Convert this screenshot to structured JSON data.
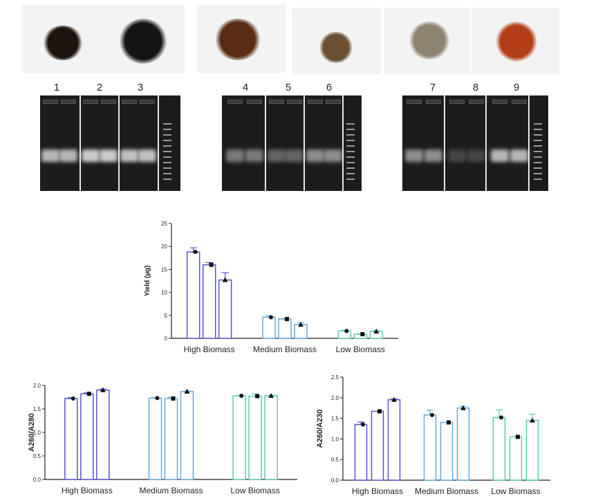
{
  "samples": {
    "lane_numbers": [
      "1",
      "2",
      "3",
      "4",
      "5",
      "6",
      "7",
      "8",
      "9"
    ],
    "pile_colors": [
      "#1e130d",
      "#151515",
      "#5a2b16",
      "#6b5034",
      "#8f8470",
      "#b23d17"
    ]
  },
  "chart_data": [
    {
      "type": "bar",
      "ylabel": "Yield (µg)",
      "categories": [
        "High Biomass",
        "Medium Biomass",
        "Low Biomass"
      ],
      "ylim": [
        0,
        25
      ],
      "yticks": [
        0,
        5,
        10,
        15,
        20,
        25
      ],
      "colors": [
        "#5555cc",
        "#66a8d8",
        "#55ccb0"
      ],
      "series": [
        {
          "values": [
            18.8,
            4.6,
            1.6
          ],
          "errors": [
            0.9,
            0.3,
            0.15
          ]
        },
        {
          "values": [
            16.0,
            4.2,
            0.9
          ],
          "errors": [
            0.5,
            0.1,
            0.1
          ]
        },
        {
          "values": [
            12.7,
            3.0,
            1.5
          ],
          "errors": [
            1.6,
            0.4,
            0.2
          ]
        }
      ],
      "grid": false
    },
    {
      "type": "bar",
      "ylabel": "A260/A280",
      "categories": [
        "High Biomass",
        "Medium Biomass",
        "Low Biomass"
      ],
      "ylim": [
        0,
        2.0
      ],
      "yticks": [
        "0.0",
        "0.5",
        "1.0",
        "1.5",
        "2.0"
      ],
      "colors": [
        "#5555cc",
        "#66a8d8",
        "#55ccb0"
      ],
      "series": [
        {
          "values": [
            1.72,
            1.73,
            1.78
          ],
          "errors": [
            0.02,
            0.01,
            0.01
          ]
        },
        {
          "values": [
            1.82,
            1.72,
            1.77
          ],
          "errors": [
            0.02,
            0.03,
            0.05
          ]
        },
        {
          "values": [
            1.9,
            1.87,
            1.78
          ],
          "errors": [
            0.02,
            0.01,
            0.01
          ]
        }
      ],
      "grid": false
    },
    {
      "type": "bar",
      "ylabel": "A260/A230",
      "categories": [
        "High Biomass",
        "Medium Biomass",
        "Low Biomass"
      ],
      "ylim": [
        0,
        2.5
      ],
      "yticks": [
        "0.0",
        "0.5",
        "1.0",
        "1.5",
        "2.0",
        "2.5"
      ],
      "colors": [
        "#5555cc",
        "#66a8d8",
        "#55ccb0"
      ],
      "series": [
        {
          "values": [
            1.35,
            1.58,
            1.52
          ],
          "errors": [
            0.06,
            0.12,
            0.18
          ]
        },
        {
          "values": [
            1.67,
            1.4,
            1.05
          ],
          "errors": [
            0.0,
            0.0,
            0.0
          ]
        },
        {
          "values": [
            1.95,
            1.75,
            1.45
          ],
          "errors": [
            0.02,
            0.04,
            0.15
          ]
        }
      ],
      "grid": false
    }
  ]
}
